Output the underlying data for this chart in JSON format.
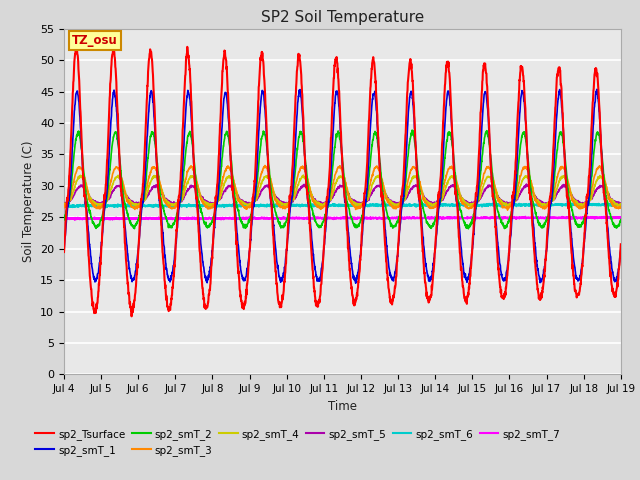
{
  "title": "SP2 Soil Temperature",
  "ylabel": "Soil Temperature (C)",
  "xlabel": "Time",
  "annotation": "TZ_osu",
  "annotation_color": "#cc0000",
  "annotation_bg": "#ffff99",
  "annotation_border": "#cc8800",
  "ylim": [
    0,
    55
  ],
  "yticks": [
    0,
    5,
    10,
    15,
    20,
    25,
    30,
    35,
    40,
    45,
    50,
    55
  ],
  "background_color": "#d8d8d8",
  "plot_bg": "#e8e8e8",
  "grid_color": "#ffffff",
  "series_colors": {
    "sp2_Tsurface": "#ff0000",
    "sp2_smT_1": "#0000dd",
    "sp2_smT_2": "#00cc00",
    "sp2_smT_3": "#ff8800",
    "sp2_smT_4": "#cccc00",
    "sp2_smT_5": "#aa00aa",
    "sp2_smT_6": "#00cccc",
    "sp2_smT_7": "#ff00ff"
  },
  "xtick_labels": [
    "Jul 4",
    "Jul 5",
    "Jul 6",
    "Jul 7",
    "Jul 8",
    "Jul 9",
    "Jul 10",
    "Jul 11",
    "Jul 12",
    "Jul 13",
    "Jul 14",
    "Jul 15",
    "Jul 16",
    "Jul 17",
    "Jul 18",
    "Jul 19"
  ],
  "n_days": 15,
  "pts_per_day": 144
}
